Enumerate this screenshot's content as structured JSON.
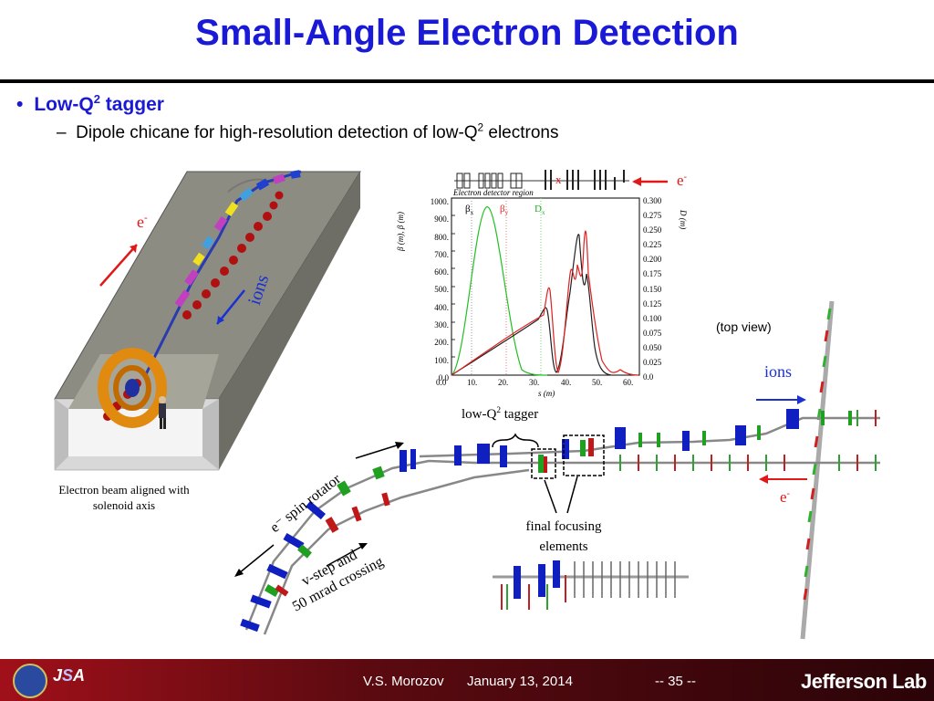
{
  "slide": {
    "title": "Small-Angle Electron Detection",
    "bullet_level1": {
      "text": "Low-Q",
      "sup": "2",
      "text_after": " tagger"
    },
    "bullet_level2": {
      "dash": "–",
      "text": "Dipole chicane for high-resolution detection of low-Q",
      "sup": "2",
      "text_after": " electrons"
    }
  },
  "left_figure": {
    "label_e": "e",
    "label_e_sup": "-",
    "label_ions": "ions",
    "caption_line1": "Electron beam aligned with",
    "caption_line2": "solenoid axis"
  },
  "plot": {
    "region_label": "Electron detector region",
    "marker_x": "x",
    "e_label": "e",
    "e_sup": "-",
    "legend": [
      "β",
      "β",
      "D"
    ],
    "legend_sub": [
      "x",
      "y",
      "x"
    ],
    "ylabel_left": "β (m), β (m)",
    "ylabel_right": "D (m)",
    "xlabel": "s (m)",
    "left_ticks": [
      "1000.",
      "900.",
      "800.",
      "700.",
      "600.",
      "500.",
      "400.",
      "300.",
      "200.",
      "100.",
      "0.0"
    ],
    "right_ticks": [
      "0.300",
      "0.275",
      "0.250",
      "0.225",
      "0.200",
      "0.175",
      "0.150",
      "0.125",
      "0.100",
      "0.075",
      "0.050",
      "0.025",
      "0.0"
    ],
    "x_ticks": [
      "0.0",
      "10.",
      "20.",
      "30.",
      "40.",
      "50.",
      "60."
    ]
  },
  "right_figure": {
    "top_view": "(top view)",
    "ions": "ions",
    "e_label": "e",
    "e_sup": "-",
    "low_q_tagger": "low-Q",
    "low_q_sup": "2",
    "low_q_after": " tagger",
    "final_focusing_1": "final focusing",
    "final_focusing_2": "elements",
    "spin_rotator": "e⁻ spin rotator",
    "vstep_1": "v-step and",
    "vstep_2": "50 mrad crossing"
  },
  "footer": {
    "author": "V.S. Morozov",
    "date": "January 13, 2014",
    "page": "-- 35 --",
    "lab": "Jefferson Lab"
  },
  "colors": {
    "title_blue": "#1a1ad6",
    "footer_red": "#a0101a",
    "magnet_blue": "#1020c0",
    "magnet_green": "#20a020",
    "magnet_red": "#c01818"
  }
}
